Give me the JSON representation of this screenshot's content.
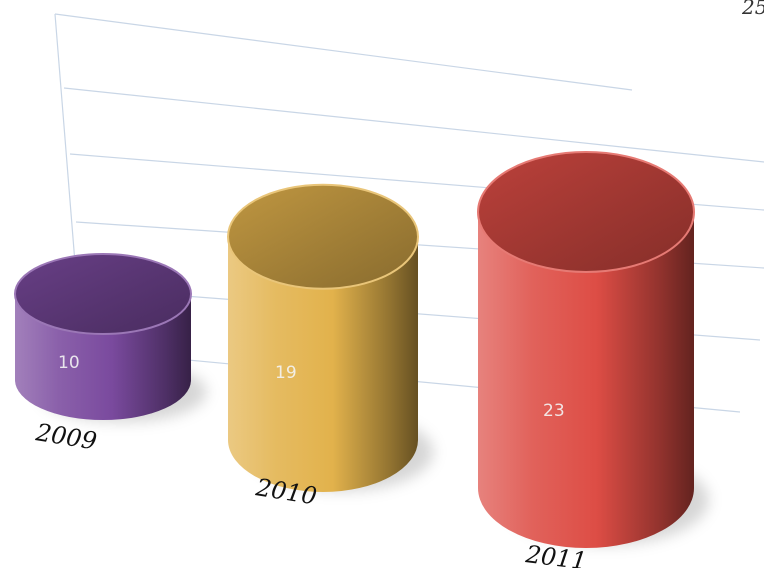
{
  "chart_data": {
    "type": "bar",
    "style": "3d-cylinder",
    "categories": [
      "2009",
      "2010",
      "2011"
    ],
    "values": [
      10,
      19,
      23
    ],
    "colors": [
      "#7a4a9e",
      "#e2b24c",
      "#dd4d45"
    ],
    "title": "",
    "xlabel": "",
    "ylabel": "",
    "ylim": [
      0,
      25
    ],
    "grid": true,
    "legend": "none",
    "corner_label": "25"
  }
}
